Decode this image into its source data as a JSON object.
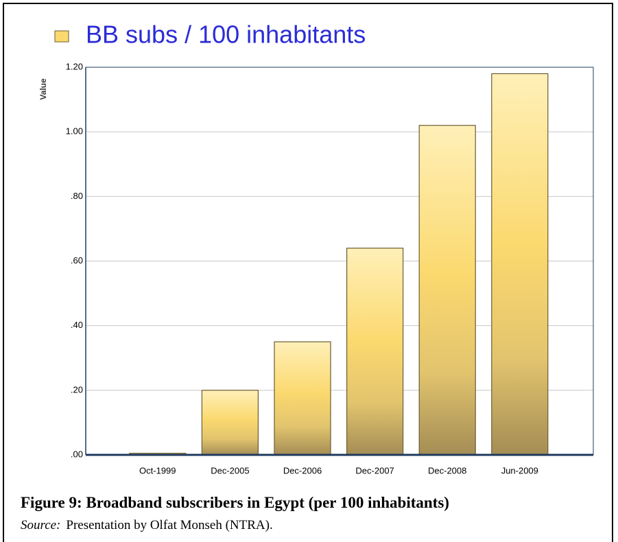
{
  "chart_data": {
    "type": "bar",
    "legend_label": "BB subs / 100 inhabitants",
    "y_axis_label": "Value",
    "categories": [
      "Oct-1999",
      "Dec-2005",
      "Dec-2006",
      "Dec-2007",
      "Dec-2008",
      "Jun-2009"
    ],
    "values": [
      0.005,
      0.2,
      0.35,
      0.64,
      1.02,
      1.18
    ],
    "color": "#fbd96f",
    "ylim": [
      0,
      1.2
    ],
    "yticks": [
      {
        "value": 0,
        "label": ".00"
      },
      {
        "value": 0.2,
        "label": ".20"
      },
      {
        "value": 0.4,
        "label": ".40"
      },
      {
        "value": 0.6,
        "label": ".60"
      },
      {
        "value": 0.8,
        "label": ".80"
      },
      {
        "value": 1.0,
        "label": "1.00"
      },
      {
        "value": 1.2,
        "label": "1.20"
      }
    ],
    "grid": true
  },
  "caption": {
    "title": "Figure 9: Broadband subscribers in Egypt (per 100 inhabitants)",
    "source_label": "Source:",
    "source_text": "Presentation by Olfat Monseh (NTRA)."
  }
}
